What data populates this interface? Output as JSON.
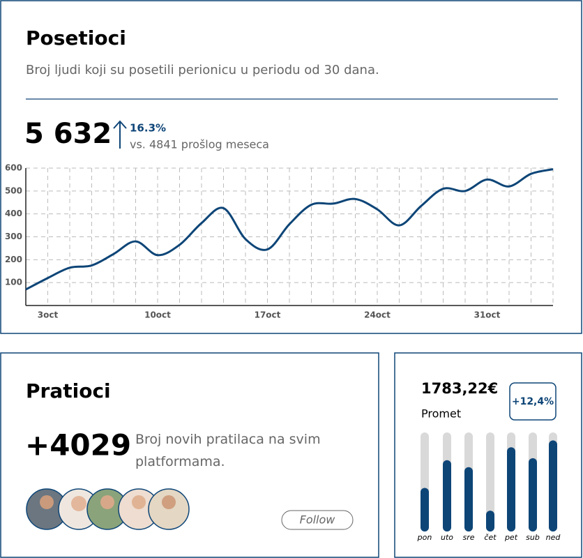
{
  "visitors": {
    "title": "Posetioci",
    "subtitle": "Broj ljudi koji su posetili perionicu u periodu od 30 dana.",
    "total": "5 632",
    "change": "16.3%",
    "comparison": "vs. 4841 prošlog meseca"
  },
  "followers": {
    "title": "Pratioci",
    "count": "+4029",
    "description": "Broj novih pratilaca na svim platformama.",
    "button": "Follow"
  },
  "revenue": {
    "amount": "1783,22€",
    "change": "+12,4%",
    "label": "Promet"
  },
  "chart_data": [
    {
      "type": "line",
      "categories": [
        null,
        "3oct",
        null,
        null,
        null,
        null,
        "10oct",
        null,
        null,
        null,
        null,
        "17oct",
        null,
        null,
        null,
        null,
        "24oct",
        null,
        null,
        null,
        null,
        "31oct",
        null,
        null,
        null
      ],
      "series": [
        {
          "name": "Posetioci",
          "color": "#0d4577",
          "values": [
            70,
            120,
            165,
            175,
            225,
            280,
            220,
            265,
            360,
            425,
            290,
            245,
            355,
            440,
            445,
            465,
            420,
            350,
            435,
            510,
            500,
            550,
            520,
            575,
            595
          ]
        }
      ],
      "ylim": [
        0,
        600
      ],
      "yticks": [
        100,
        200,
        300,
        400,
        500,
        600
      ],
      "grid": true
    },
    {
      "type": "bar",
      "categories": [
        "pon",
        "uto",
        "sre",
        "čet",
        "pet",
        "sub",
        "ned"
      ],
      "values": [
        44,
        72,
        65,
        21,
        85,
        74,
        92
      ],
      "color": "#0d4577",
      "track_color": "#d9d9d9",
      "ylim": [
        0,
        100
      ]
    }
  ]
}
